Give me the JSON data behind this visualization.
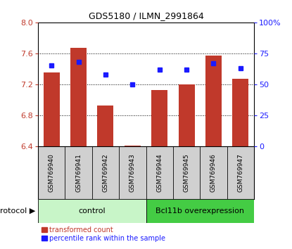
{
  "title": "GDS5180 / ILMN_2991864",
  "samples": [
    "GSM769940",
    "GSM769941",
    "GSM769942",
    "GSM769943",
    "GSM769944",
    "GSM769945",
    "GSM769946",
    "GSM769947"
  ],
  "transformed_counts": [
    7.35,
    7.67,
    6.93,
    6.41,
    7.13,
    7.2,
    7.57,
    7.27
  ],
  "percentile_ranks": [
    65,
    68,
    58,
    50,
    62,
    62,
    67,
    63
  ],
  "ylim_left": [
    6.4,
    8.0
  ],
  "ylim_right": [
    0,
    100
  ],
  "yticks_left": [
    6.4,
    6.8,
    7.2,
    7.6,
    8.0
  ],
  "yticks_right": [
    0,
    25,
    50,
    75,
    100
  ],
  "ytick_labels_right": [
    "0",
    "25",
    "50",
    "75",
    "100%"
  ],
  "bar_color": "#c0392b",
  "dot_color": "#1a1aff",
  "bg_color": "#ffffff",
  "grid_color": "#000000",
  "control_label": "control",
  "overexpression_label": "Bcl11b overexpression",
  "control_bg": "#c8f5c8",
  "overexpression_bg": "#44cc44",
  "protocol_label": "protocol",
  "legend_bar_label": "transformed count",
  "legend_dot_label": "percentile rank within the sample",
  "bar_bottom": 6.4,
  "bar_width": 0.6,
  "cell_bg": "#d0d0d0"
}
